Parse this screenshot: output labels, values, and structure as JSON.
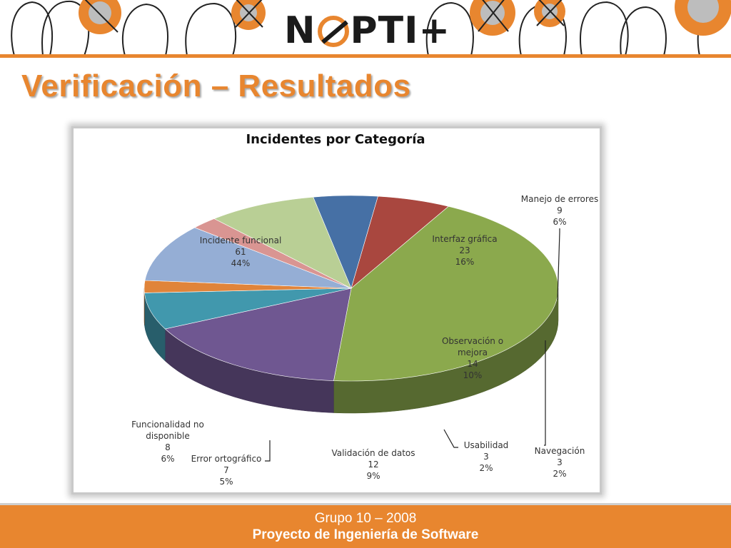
{
  "slide": {
    "title": "Verificación – Resultados",
    "logo_text": "NOPTI+"
  },
  "footer": {
    "line1": "Grupo 10 – 2008",
    "line2": "Proyecto de Ingeniería de Software"
  },
  "chart_data": {
    "type": "pie",
    "title": "Incidentes por Categoría",
    "three_d": true,
    "legend": "none",
    "slices": [
      {
        "name": "Incidente funcional",
        "value": 61,
        "percent": "44%",
        "color": "#8ba94d"
      },
      {
        "name": "Interfaz gráfica",
        "value": 23,
        "percent": "16%",
        "color": "#6f5791"
      },
      {
        "name": "Manejo de errores",
        "value": 9,
        "percent": "6%",
        "color": "#4198ad"
      },
      {
        "name": "Navegación",
        "value": 3,
        "percent": "2%",
        "color": "#e0843a"
      },
      {
        "name": "Observación o mejora",
        "value": 14,
        "percent": "10%",
        "color": "#95aed5"
      },
      {
        "name": "Usabilidad",
        "value": 3,
        "percent": "2%",
        "color": "#d99592"
      },
      {
        "name": "Validación de datos",
        "value": 12,
        "percent": "9%",
        "color": "#b9cf95"
      },
      {
        "name": "Error ortográfico",
        "value": 7,
        "percent": "5%",
        "color": "#4670a5"
      },
      {
        "name": "Funcionalidad no disponible",
        "value": 8,
        "percent": "6%",
        "color": "#a9473f"
      }
    ]
  }
}
